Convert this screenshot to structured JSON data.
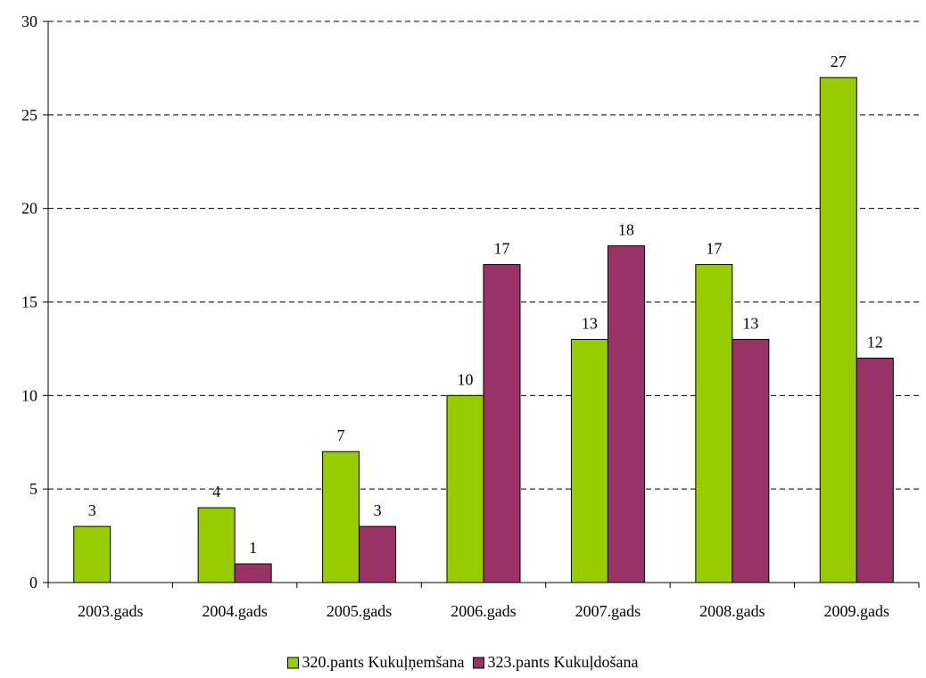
{
  "chart_data": {
    "type": "bar",
    "title": "",
    "xlabel": "",
    "ylabel": "",
    "ylim": [
      0,
      30
    ],
    "yticks": [
      0,
      5,
      10,
      15,
      20,
      25,
      30
    ],
    "grid": true,
    "legend_position": "bottom",
    "categories": [
      "2003.gads",
      "2004.gads",
      "2005.gads",
      "2006.gads",
      "2007.gads",
      "2008.gads",
      "2009.gads"
    ],
    "series": [
      {
        "name": "320.pants Kukuļņemšana",
        "color": "#99cc00",
        "values": [
          3,
          4,
          7,
          10,
          13,
          17,
          27
        ],
        "labels": [
          "3",
          "4",
          "7",
          "10",
          "13",
          "17",
          "27"
        ]
      },
      {
        "name": "323.pants Kukuļdošana",
        "color": "#993366",
        "values": [
          null,
          1,
          3,
          17,
          18,
          13,
          12
        ],
        "labels": [
          "",
          "1",
          "3",
          "17",
          "18",
          "13",
          "12"
        ]
      }
    ]
  }
}
